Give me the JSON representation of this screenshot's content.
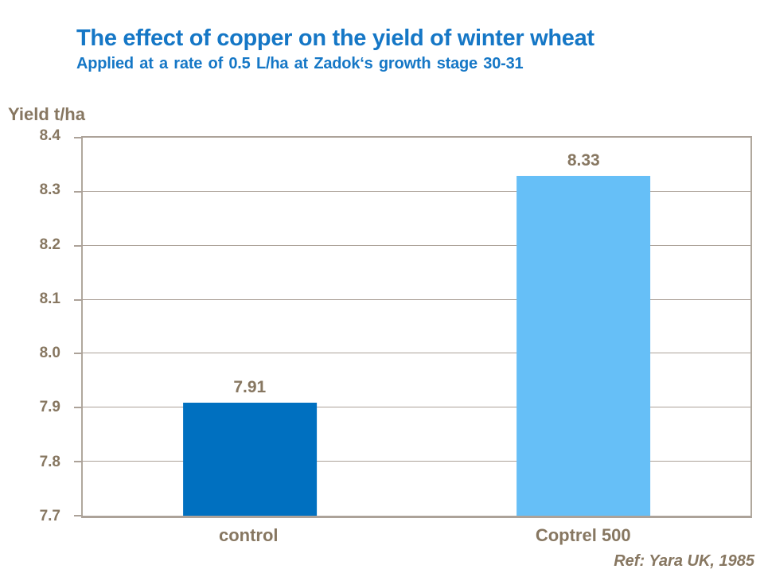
{
  "slide": {
    "title": "The effect of copper on the yield of winter wheat",
    "subtitle": "Applied at a rate of 0.5 L/ha at Zadok‘s growth stage 30-31",
    "footer_ref": "Ref: Yara UK, 1985"
  },
  "colors": {
    "title_blue": "#1577C6",
    "text_brown": "#877761",
    "grid_gray": "#ACA299",
    "frame_gray": "#B0A89D",
    "bar_control": "#0070C0",
    "bar_coptrel": "#66BFF7"
  },
  "chart_data": {
    "type": "bar",
    "title": "The effect of copper on the yield of winter wheat",
    "subtitle": "Applied at a rate of 0.5 L/ha at Zadok‘s growth stage 30-31",
    "categories": [
      "control",
      "Coptrel 500"
    ],
    "values": [
      7.91,
      8.33
    ],
    "value_labels": [
      "7.91",
      "8.33"
    ],
    "bar_colors": [
      "#0070C0",
      "#66BFF7"
    ],
    "ylabel": "Yield t/ha",
    "xlabel": "",
    "ylim": [
      7.7,
      8.4
    ],
    "ytick_step": 0.1,
    "yticks": [
      "8.4",
      "8.3",
      "8.2",
      "8.1",
      "8.0",
      "7.9",
      "7.8",
      "7.7"
    ],
    "grid": true,
    "legend": false,
    "annotation": "Ref: Yara UK, 1985"
  }
}
